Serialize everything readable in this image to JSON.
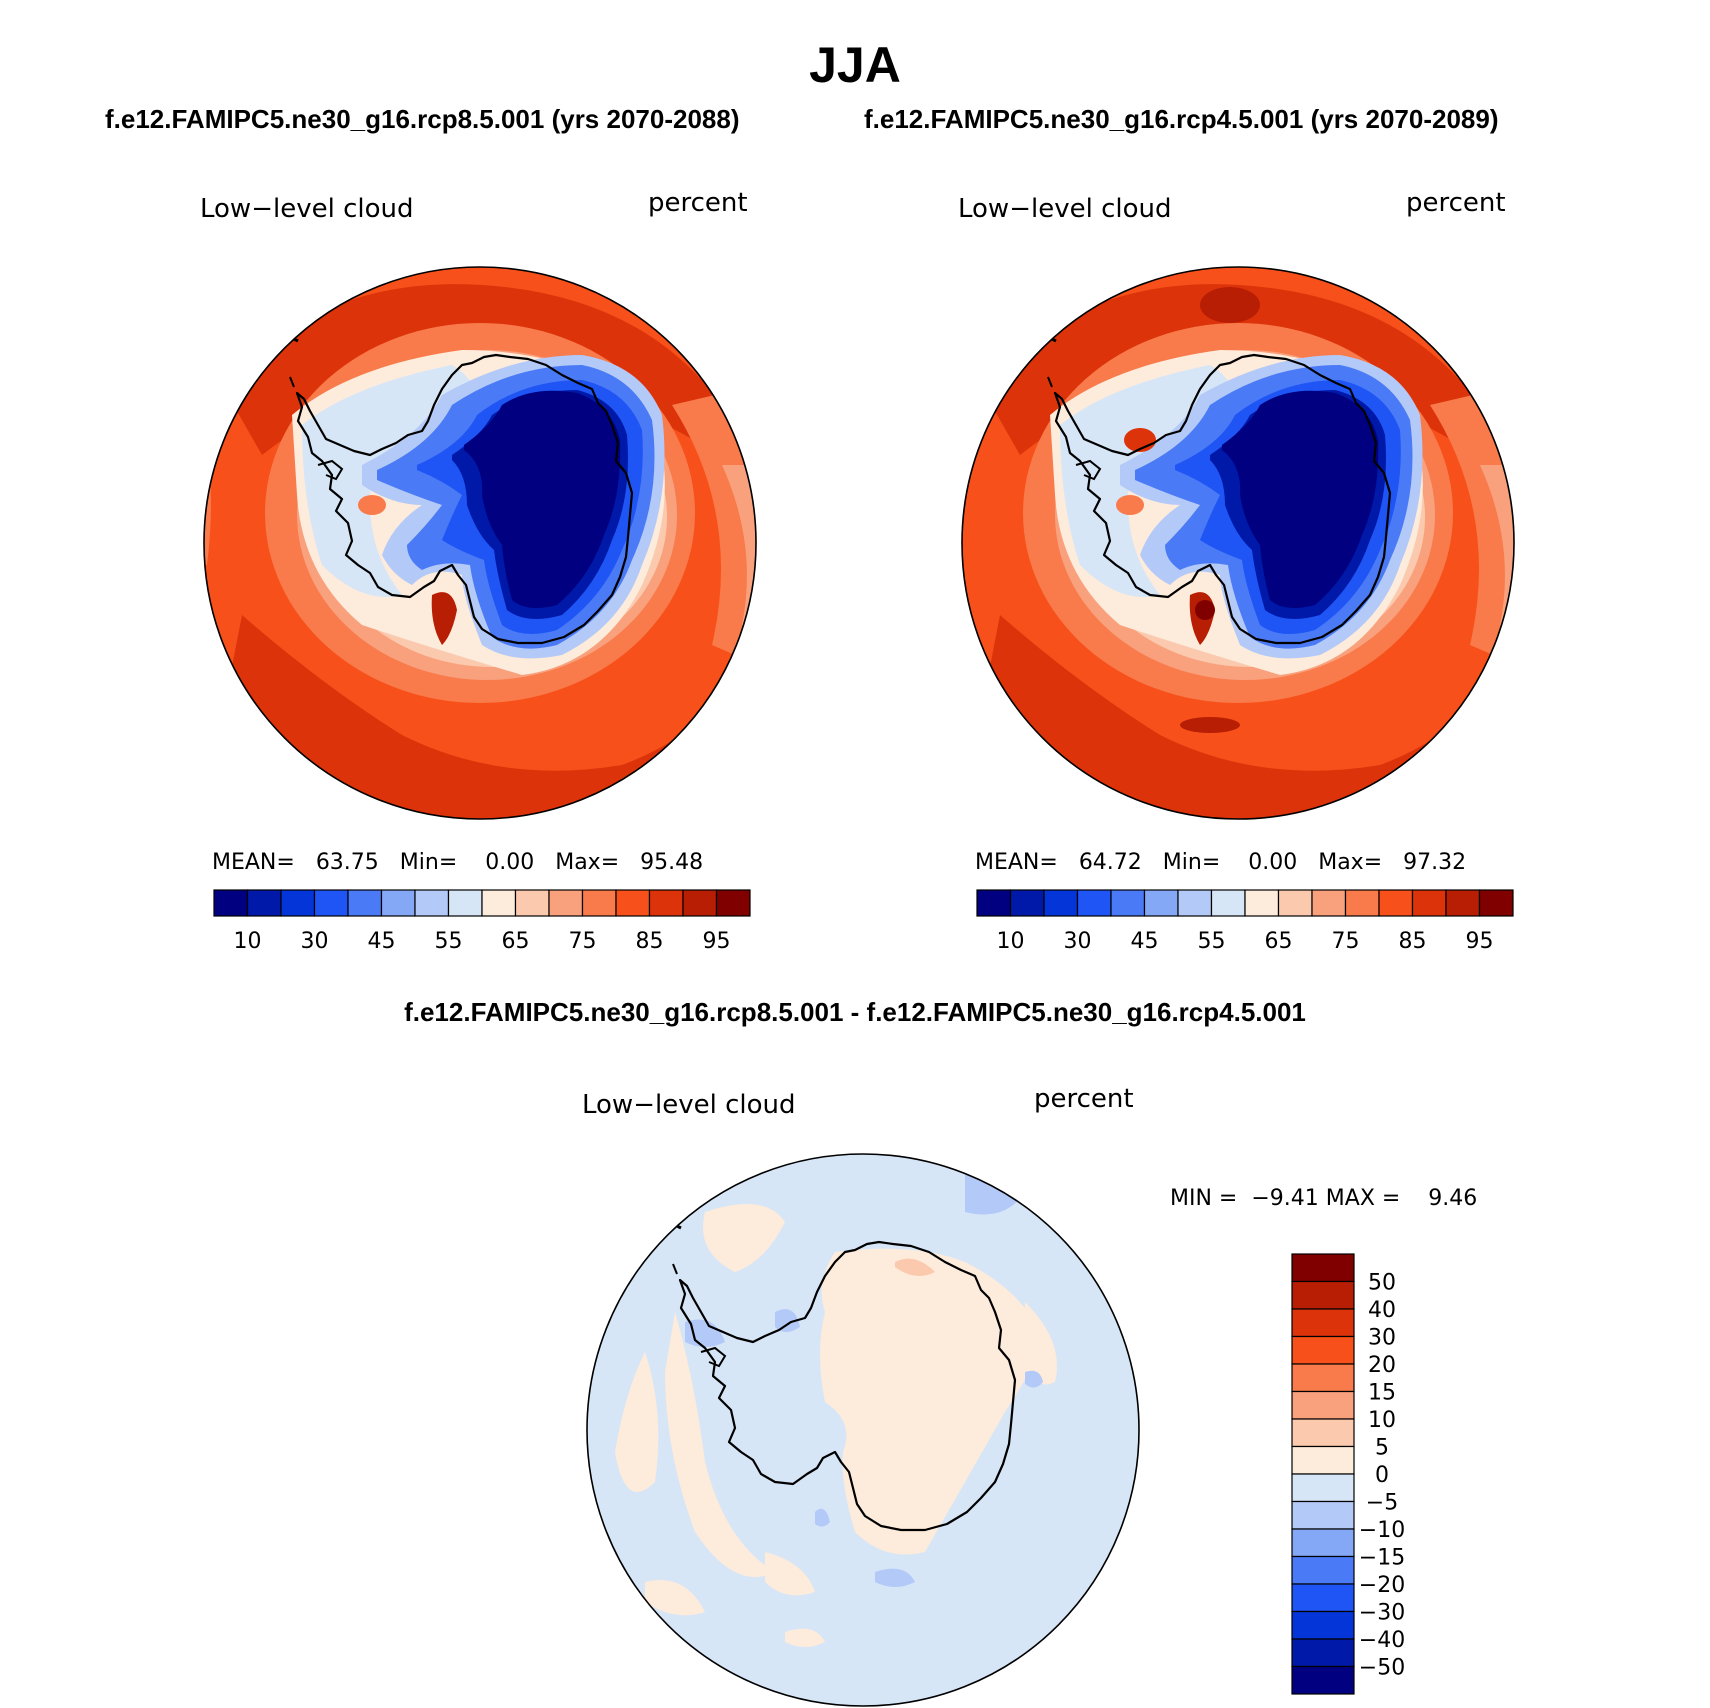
{
  "title": "JJA",
  "panels": [
    {
      "case": "f.e12.FAMIPC5.ne30_g16.rcp8.5.001 (yrs 2070-2088)",
      "variable": "Low−level cloud",
      "units": "percent",
      "stats": {
        "mean_label": "MEAN=",
        "mean": "63.75",
        "min_label": "Min=",
        "min": "0.00",
        "max_label": "Max=",
        "max": "95.48"
      }
    },
    {
      "case": "f.e12.FAMIPC5.ne30_g16.rcp4.5.001 (yrs 2070-2089)",
      "variable": "Low−level cloud",
      "units": "percent",
      "stats": {
        "mean_label": "MEAN=",
        "mean": "64.72",
        "min_label": "Min=",
        "min": "0.00",
        "max_label": "Max=",
        "max": "97.32"
      }
    }
  ],
  "diff": {
    "title": "f.e12.FAMIPC5.ne30_g16.rcp8.5.001 - f.e12.FAMIPC5.ne30_g16.rcp4.5.001",
    "variable": "Low−level cloud",
    "units": "percent",
    "stats": {
      "min_label": "MIN =",
      "min": "−9.41",
      "max_label": "MAX =",
      "max": "9.46"
    }
  },
  "colorbar_abs": {
    "colors": [
      "#000080",
      "#0019a8",
      "#0335d9",
      "#1f55f5",
      "#4a7af5",
      "#84a8f5",
      "#b3c9f7",
      "#d6e6f7",
      "#fdebdc",
      "#fbcaae",
      "#f9a07c",
      "#f97a4a",
      "#f7501a",
      "#dd330a",
      "#b81e04",
      "#800000"
    ],
    "tick_labels": [
      "10",
      "30",
      "45",
      "55",
      "65",
      "75",
      "85",
      "95"
    ]
  },
  "colorbar_diff": {
    "colors": [
      "#800000",
      "#b81e04",
      "#dd330a",
      "#f7501a",
      "#f97a4a",
      "#f9a07c",
      "#fbcaae",
      "#fdebdc",
      "#d6e6f7",
      "#b3c9f7",
      "#84a8f5",
      "#4a7af5",
      "#1f55f5",
      "#0335d9",
      "#0019a8",
      "#000080"
    ],
    "tick_labels": [
      "50",
      "40",
      "30",
      "20",
      "15",
      "10",
      "5",
      "0",
      "−5",
      "−10",
      "−15",
      "−20",
      "−30",
      "−40",
      "−50"
    ]
  }
}
